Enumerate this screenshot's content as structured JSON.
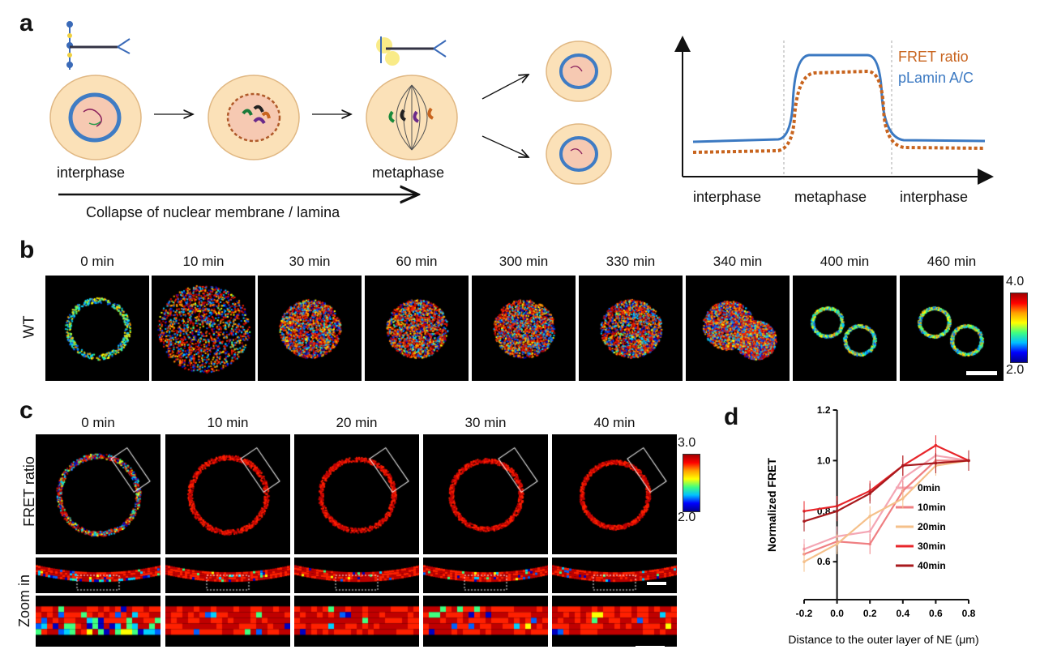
{
  "panel_a": {
    "letter": "a",
    "stage_interphase": "interphase",
    "stage_metaphase": "metaphase",
    "collapse_label": "Collapse of nuclear membrane / lamina",
    "graph": {
      "legend_fret": "FRET ratio",
      "legend_plamin": "pLamin A/C",
      "x_labels": [
        "interphase",
        "metaphase",
        "interphase"
      ],
      "colors": {
        "fret": "#c8641e",
        "plamin": "#3b79c2"
      }
    }
  },
  "panel_b": {
    "letter": "b",
    "row_label": "WT",
    "times": [
      "0 min",
      "10 min",
      "30 min",
      "60 min",
      "300 min",
      "330 min",
      "340 min",
      "400 min",
      "460 min"
    ],
    "colorbar_max": "4.0",
    "colorbar_min": "2.0"
  },
  "panel_c": {
    "letter": "c",
    "times": [
      "0 min",
      "10 min",
      "20 min",
      "30 min",
      "40 min"
    ],
    "row_fret": "FRET ratio",
    "row_zoom": "Zoom in",
    "colorbar_max": "3.0",
    "colorbar_min": "2.0"
  },
  "panel_d": {
    "letter": "d"
  },
  "chart_data": {
    "type": "line",
    "xlabel": "Distance to the outer layer of NE (μm)",
    "ylabel": "Normalized FRET",
    "x": [
      -0.2,
      0.0,
      0.2,
      0.4,
      0.6,
      0.8
    ],
    "xlim": [
      -0.2,
      0.8
    ],
    "ylim": [
      0.45,
      1.2
    ],
    "y_ticks": [
      "0.6",
      "0.8",
      "1.0",
      "1.2"
    ],
    "x_ticks": [
      "-0.2",
      "0.0",
      "0.2",
      "0.4",
      "0.6",
      "0.8"
    ],
    "series": [
      {
        "name": "0min",
        "color": "#f4a6b4",
        "values": [
          0.65,
          0.7,
          0.72,
          0.93,
          1.02,
          1.0
        ]
      },
      {
        "name": "10min",
        "color": "#ef7f82",
        "values": [
          0.63,
          0.68,
          0.67,
          0.88,
          1.0,
          1.0
        ]
      },
      {
        "name": "20min",
        "color": "#f5c08a",
        "values": [
          0.6,
          0.67,
          0.78,
          0.85,
          0.98,
          1.0
        ]
      },
      {
        "name": "30min",
        "color": "#e8252a",
        "values": [
          0.8,
          0.82,
          0.88,
          0.98,
          1.06,
          1.0
        ]
      },
      {
        "name": "40min",
        "color": "#a8191d",
        "values": [
          0.76,
          0.8,
          0.87,
          0.98,
          0.99,
          1.0
        ]
      }
    ]
  }
}
